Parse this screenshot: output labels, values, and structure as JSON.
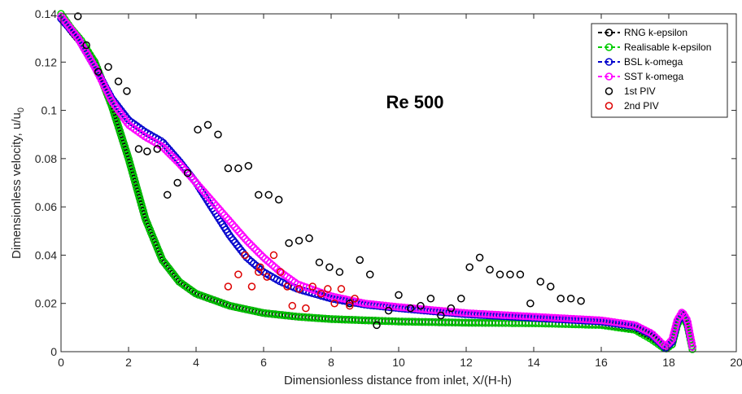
{
  "chart_data": {
    "type": "scatter",
    "xlabel": "Dimensionless distance from inlet, X/(H-h)",
    "ylabel": "Dimensionless velocity, u/u",
    "ylabel_sub": "0",
    "annotation": "Re 500",
    "xlim": [
      0,
      20
    ],
    "ylim": [
      0,
      0.14
    ],
    "xticks": [
      0,
      2,
      4,
      6,
      8,
      10,
      12,
      14,
      16,
      18,
      20
    ],
    "yticks": [
      0,
      0.02,
      0.04,
      0.06,
      0.08,
      0.1,
      0.12,
      0.14
    ],
    "xtick_labels": [
      "0",
      "2",
      "4",
      "6",
      "8",
      "10",
      "12",
      "14",
      "16",
      "18",
      "20"
    ],
    "ytick_labels": [
      "0",
      "0.02",
      "0.04",
      "0.06",
      "0.08",
      "0.1",
      "0.12",
      "0.14"
    ],
    "grid": false,
    "legend_position": "top-right",
    "series": [
      {
        "name": "RNG k-epsilon",
        "color": "#000000",
        "style": "dashed-line-with-circles",
        "points": [
          [
            0,
            0.139
          ],
          [
            0.3,
            0.133
          ],
          [
            0.6,
            0.128
          ],
          [
            1.0,
            0.12
          ],
          [
            1.5,
            0.102
          ],
          [
            2.0,
            0.08
          ],
          [
            2.5,
            0.055
          ],
          [
            3.0,
            0.038
          ],
          [
            3.5,
            0.029
          ],
          [
            4.0,
            0.024
          ],
          [
            5.0,
            0.019
          ],
          [
            6.0,
            0.016
          ],
          [
            7.0,
            0.0145
          ],
          [
            8.0,
            0.0135
          ],
          [
            10.0,
            0.0125
          ],
          [
            12.0,
            0.012
          ],
          [
            14.0,
            0.0118
          ],
          [
            16.0,
            0.0112
          ],
          [
            17.0,
            0.0095
          ],
          [
            17.5,
            0.006
          ],
          [
            17.9,
            0.0015
          ],
          [
            18.1,
            0.003
          ],
          [
            18.25,
            0.012
          ],
          [
            18.4,
            0.0155
          ],
          [
            18.55,
            0.012
          ],
          [
            18.7,
            0.002
          ]
        ]
      },
      {
        "name": "Realisable k-epsilon",
        "color": "#00cc00",
        "style": "dashed-line-with-circles",
        "points": [
          [
            0,
            0.14
          ],
          [
            0.3,
            0.134
          ],
          [
            0.6,
            0.129
          ],
          [
            1.0,
            0.12
          ],
          [
            1.5,
            0.102
          ],
          [
            2.0,
            0.08
          ],
          [
            2.5,
            0.055
          ],
          [
            3.0,
            0.038
          ],
          [
            3.5,
            0.029
          ],
          [
            4.0,
            0.024
          ],
          [
            5.0,
            0.019
          ],
          [
            6.0,
            0.016
          ],
          [
            7.0,
            0.0145
          ],
          [
            8.0,
            0.0135
          ],
          [
            10.0,
            0.0125
          ],
          [
            12.0,
            0.012
          ],
          [
            14.0,
            0.0118
          ],
          [
            16.0,
            0.011
          ],
          [
            17.0,
            0.009
          ],
          [
            17.5,
            0.005
          ],
          [
            17.9,
            0.001
          ],
          [
            18.1,
            0.003
          ],
          [
            18.25,
            0.011
          ],
          [
            18.4,
            0.015
          ],
          [
            18.55,
            0.011
          ],
          [
            18.7,
            0.001
          ]
        ]
      },
      {
        "name": "BSL k-omega",
        "color": "#0000cc",
        "style": "dashed-line-with-circles",
        "points": [
          [
            0,
            0.138
          ],
          [
            0.5,
            0.13
          ],
          [
            1.0,
            0.118
          ],
          [
            1.5,
            0.105
          ],
          [
            2.0,
            0.096
          ],
          [
            2.5,
            0.091
          ],
          [
            3.0,
            0.087
          ],
          [
            3.5,
            0.079
          ],
          [
            4.0,
            0.07
          ],
          [
            4.5,
            0.059
          ],
          [
            5.0,
            0.048
          ],
          [
            5.5,
            0.039
          ],
          [
            6.0,
            0.033
          ],
          [
            6.5,
            0.029
          ],
          [
            7.0,
            0.026
          ],
          [
            8.0,
            0.022
          ],
          [
            9.0,
            0.0195
          ],
          [
            10.0,
            0.018
          ],
          [
            12.0,
            0.0155
          ],
          [
            14.0,
            0.014
          ],
          [
            16.0,
            0.0125
          ],
          [
            17.0,
            0.0105
          ],
          [
            17.5,
            0.007
          ],
          [
            17.9,
            0.0015
          ],
          [
            18.1,
            0.004
          ],
          [
            18.25,
            0.012
          ],
          [
            18.4,
            0.016
          ],
          [
            18.55,
            0.012
          ],
          [
            18.7,
            0.002
          ]
        ]
      },
      {
        "name": "SST k-omega",
        "color": "#ff00ff",
        "style": "dashed-line-with-circles",
        "points": [
          [
            0,
            0.139
          ],
          [
            0.5,
            0.13
          ],
          [
            1.0,
            0.118
          ],
          [
            1.5,
            0.104
          ],
          [
            2.0,
            0.094
          ],
          [
            2.5,
            0.089
          ],
          [
            3.0,
            0.085
          ],
          [
            3.5,
            0.078
          ],
          [
            4.0,
            0.07
          ],
          [
            4.5,
            0.062
          ],
          [
            5.0,
            0.054
          ],
          [
            5.5,
            0.046
          ],
          [
            6.0,
            0.039
          ],
          [
            6.5,
            0.033
          ],
          [
            7.0,
            0.028
          ],
          [
            8.0,
            0.023
          ],
          [
            9.0,
            0.02
          ],
          [
            10.0,
            0.0185
          ],
          [
            12.0,
            0.016
          ],
          [
            14.0,
            0.0145
          ],
          [
            16.0,
            0.013
          ],
          [
            17.0,
            0.011
          ],
          [
            17.5,
            0.0075
          ],
          [
            17.9,
            0.002
          ],
          [
            18.1,
            0.005
          ],
          [
            18.25,
            0.013
          ],
          [
            18.4,
            0.0165
          ],
          [
            18.55,
            0.013
          ],
          [
            18.7,
            0.002
          ]
        ]
      },
      {
        "name": "1st PIV",
        "color": "#000000",
        "style": "markers",
        "points": [
          [
            0.5,
            0.139
          ],
          [
            0.75,
            0.127
          ],
          [
            1.1,
            0.116
          ],
          [
            1.4,
            0.118
          ],
          [
            1.7,
            0.112
          ],
          [
            1.95,
            0.108
          ],
          [
            2.3,
            0.084
          ],
          [
            2.55,
            0.083
          ],
          [
            2.85,
            0.084
          ],
          [
            3.15,
            0.065
          ],
          [
            3.45,
            0.07
          ],
          [
            3.75,
            0.074
          ],
          [
            4.05,
            0.092
          ],
          [
            4.35,
            0.094
          ],
          [
            4.65,
            0.09
          ],
          [
            4.95,
            0.076
          ],
          [
            5.25,
            0.076
          ],
          [
            5.55,
            0.077
          ],
          [
            5.85,
            0.065
          ],
          [
            6.15,
            0.065
          ],
          [
            6.45,
            0.063
          ],
          [
            6.75,
            0.045
          ],
          [
            7.05,
            0.046
          ],
          [
            7.35,
            0.047
          ],
          [
            7.65,
            0.037
          ],
          [
            7.95,
            0.035
          ],
          [
            8.25,
            0.033
          ],
          [
            8.55,
            0.02
          ],
          [
            8.85,
            0.038
          ],
          [
            9.15,
            0.032
          ],
          [
            9.35,
            0.011
          ],
          [
            9.7,
            0.017
          ],
          [
            10.0,
            0.0235
          ],
          [
            10.35,
            0.018
          ],
          [
            10.65,
            0.019
          ],
          [
            10.95,
            0.022
          ],
          [
            11.25,
            0.015
          ],
          [
            11.55,
            0.018
          ],
          [
            11.85,
            0.022
          ],
          [
            12.1,
            0.035
          ],
          [
            12.4,
            0.039
          ],
          [
            12.7,
            0.034
          ],
          [
            13.0,
            0.032
          ],
          [
            13.3,
            0.032
          ],
          [
            13.6,
            0.032
          ],
          [
            13.9,
            0.02
          ],
          [
            14.2,
            0.029
          ],
          [
            14.5,
            0.027
          ],
          [
            14.8,
            0.022
          ],
          [
            15.1,
            0.022
          ],
          [
            15.4,
            0.021
          ]
        ]
      },
      {
        "name": "2nd PIV",
        "color": "#dd0000",
        "style": "markers",
        "points": [
          [
            4.95,
            0.027
          ],
          [
            5.25,
            0.032
          ],
          [
            5.45,
            0.04
          ],
          [
            5.65,
            0.027
          ],
          [
            5.85,
            0.033
          ],
          [
            5.9,
            0.035
          ],
          [
            6.1,
            0.031
          ],
          [
            6.3,
            0.04
          ],
          [
            6.5,
            0.033
          ],
          [
            6.7,
            0.027
          ],
          [
            6.85,
            0.019
          ],
          [
            7.05,
            0.026
          ],
          [
            7.25,
            0.018
          ],
          [
            7.45,
            0.027
          ],
          [
            7.7,
            0.024
          ],
          [
            7.9,
            0.026
          ],
          [
            8.1,
            0.02
          ],
          [
            8.3,
            0.026
          ],
          [
            8.55,
            0.019
          ],
          [
            8.7,
            0.022
          ]
        ]
      }
    ]
  }
}
